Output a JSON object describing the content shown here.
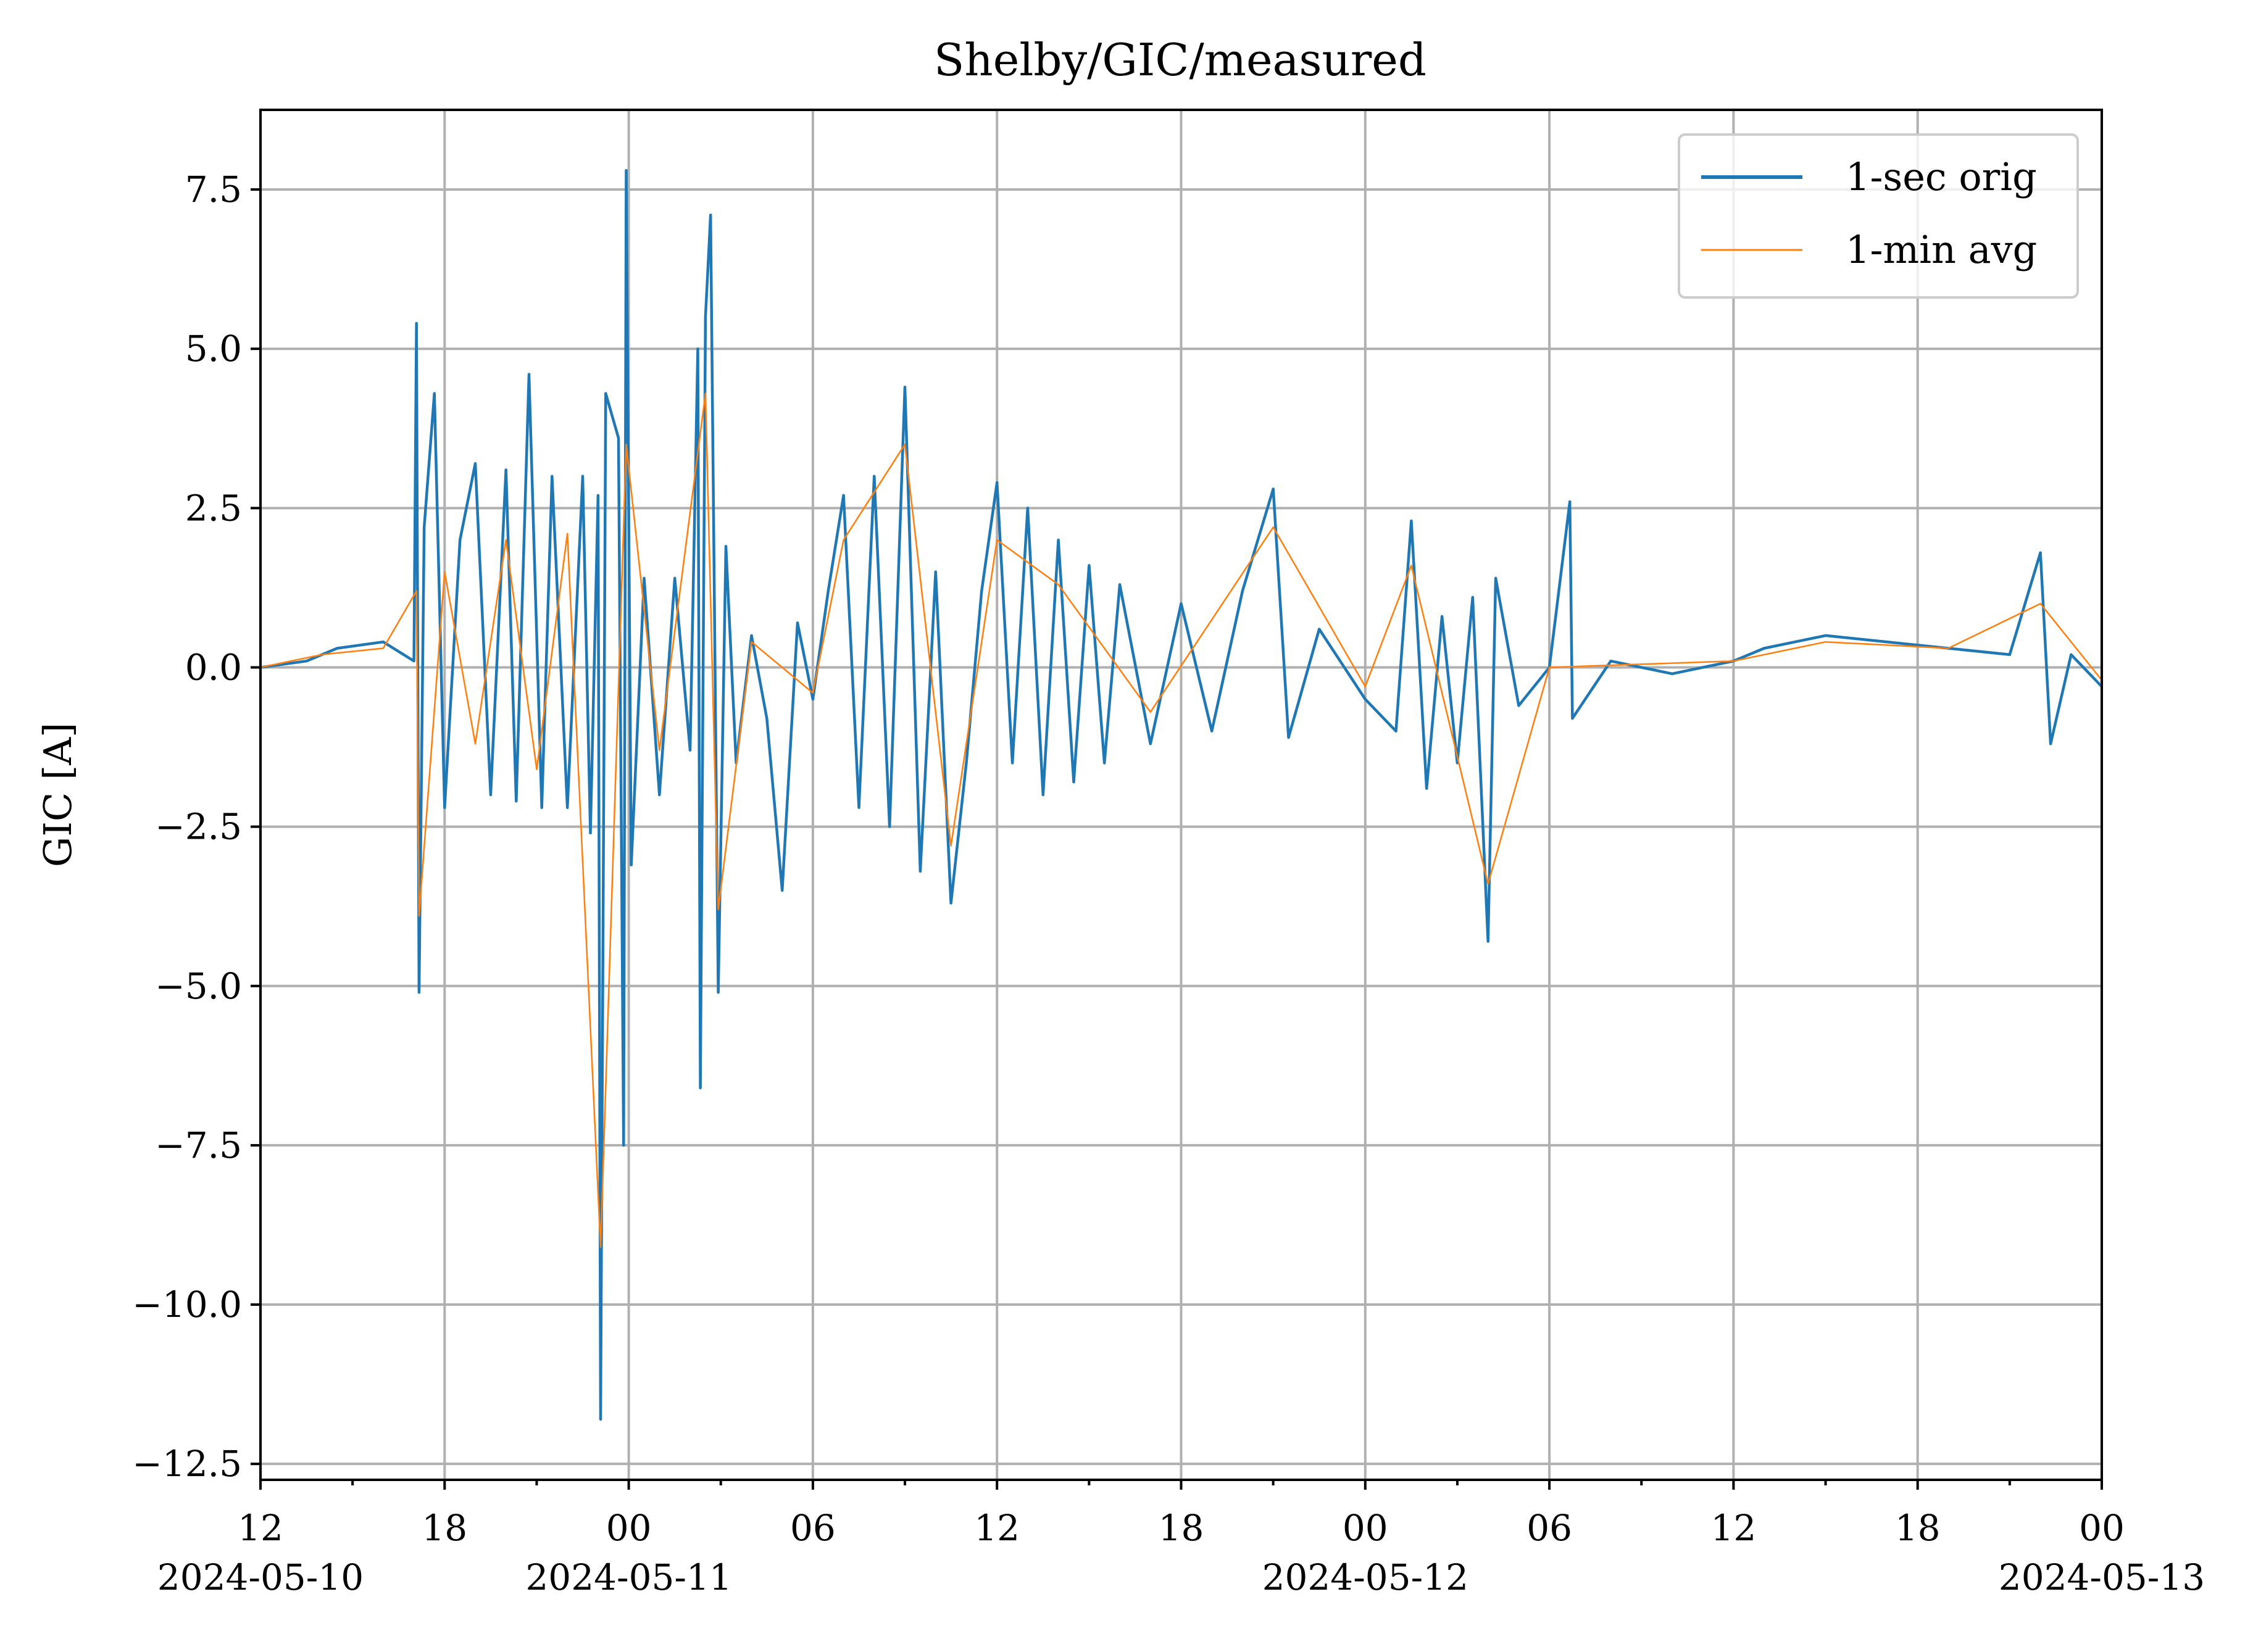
{
  "chart_data": {
    "type": "line",
    "title": "Shelby/GIC/measured",
    "xlabel": "",
    "ylabel": "GIC [A]",
    "xlim": [
      "2024-05-10 12:00",
      "2024-05-13 00:00"
    ],
    "ylim": [
      -12.75,
      8.75
    ],
    "grid": true,
    "legend_position": "upper right",
    "x_ticks": [
      {
        "time": "2024-05-10 12:00",
        "label": "12",
        "date_label": "2024-05-10"
      },
      {
        "time": "2024-05-10 18:00",
        "label": "18",
        "date_label": ""
      },
      {
        "time": "2024-05-11 00:00",
        "label": "00",
        "date_label": "2024-05-11"
      },
      {
        "time": "2024-05-11 06:00",
        "label": "06",
        "date_label": ""
      },
      {
        "time": "2024-05-11 12:00",
        "label": "12",
        "date_label": ""
      },
      {
        "time": "2024-05-11 18:00",
        "label": "18",
        "date_label": ""
      },
      {
        "time": "2024-05-12 00:00",
        "label": "00",
        "date_label": "2024-05-12"
      },
      {
        "time": "2024-05-12 06:00",
        "label": "06",
        "date_label": ""
      },
      {
        "time": "2024-05-12 12:00",
        "label": "12",
        "date_label": ""
      },
      {
        "time": "2024-05-12 18:00",
        "label": "18",
        "date_label": ""
      },
      {
        "time": "2024-05-13 00:00",
        "label": "00",
        "date_label": "2024-05-13"
      }
    ],
    "y_ticks": [
      {
        "value": 7.5,
        "label": "7.5"
      },
      {
        "value": 5.0,
        "label": "5.0"
      },
      {
        "value": 2.5,
        "label": "2.5"
      },
      {
        "value": 0.0,
        "label": "0.0"
      },
      {
        "value": -2.5,
        "label": "−2.5"
      },
      {
        "value": -5.0,
        "label": "−5.0"
      },
      {
        "value": -7.5,
        "label": "−7.5"
      },
      {
        "value": -10.0,
        "label": "−10.0"
      },
      {
        "value": -12.5,
        "label": "−12.5"
      }
    ],
    "series": [
      {
        "name": "1-sec orig",
        "color": "#1f77b4",
        "points": [
          [
            "2024-05-10 12:00",
            0.0
          ],
          [
            "2024-05-10 13:30",
            0.1
          ],
          [
            "2024-05-10 14:30",
            0.3
          ],
          [
            "2024-05-10 16:00",
            0.4
          ],
          [
            "2024-05-10 17:00",
            0.1
          ],
          [
            "2024-05-10 17:05",
            5.4
          ],
          [
            "2024-05-10 17:10",
            -5.1
          ],
          [
            "2024-05-10 17:20",
            2.2
          ],
          [
            "2024-05-10 17:40",
            4.3
          ],
          [
            "2024-05-10 18:00",
            -2.2
          ],
          [
            "2024-05-10 18:30",
            2.0
          ],
          [
            "2024-05-10 19:00",
            3.2
          ],
          [
            "2024-05-10 19:30",
            -2.0
          ],
          [
            "2024-05-10 20:00",
            3.1
          ],
          [
            "2024-05-10 20:20",
            -2.1
          ],
          [
            "2024-05-10 20:45",
            4.6
          ],
          [
            "2024-05-10 21:10",
            -2.2
          ],
          [
            "2024-05-10 21:30",
            3.0
          ],
          [
            "2024-05-10 22:00",
            -2.2
          ],
          [
            "2024-05-10 22:30",
            3.0
          ],
          [
            "2024-05-10 22:45",
            -2.6
          ],
          [
            "2024-05-10 23:00",
            2.7
          ],
          [
            "2024-05-10 23:05",
            -11.8
          ],
          [
            "2024-05-10 23:15",
            4.3
          ],
          [
            "2024-05-10 23:40",
            3.6
          ],
          [
            "2024-05-10 23:50",
            -7.5
          ],
          [
            "2024-05-10 23:55",
            7.8
          ],
          [
            "2024-05-11 00:05",
            -3.1
          ],
          [
            "2024-05-11 00:30",
            1.4
          ],
          [
            "2024-05-11 01:00",
            -2.0
          ],
          [
            "2024-05-11 01:30",
            1.4
          ],
          [
            "2024-05-11 02:00",
            -1.3
          ],
          [
            "2024-05-11 02:15",
            5.0
          ],
          [
            "2024-05-11 02:20",
            -6.6
          ],
          [
            "2024-05-11 02:30",
            5.5
          ],
          [
            "2024-05-11 02:40",
            7.1
          ],
          [
            "2024-05-11 02:55",
            -5.1
          ],
          [
            "2024-05-11 03:10",
            1.9
          ],
          [
            "2024-05-11 03:30",
            -1.5
          ],
          [
            "2024-05-11 04:00",
            0.5
          ],
          [
            "2024-05-11 04:30",
            -0.8
          ],
          [
            "2024-05-11 05:00",
            -3.5
          ],
          [
            "2024-05-11 05:30",
            0.7
          ],
          [
            "2024-05-11 06:00",
            -0.5
          ],
          [
            "2024-05-11 06:30",
            1.2
          ],
          [
            "2024-05-11 07:00",
            2.7
          ],
          [
            "2024-05-11 07:30",
            -2.2
          ],
          [
            "2024-05-11 08:00",
            3.0
          ],
          [
            "2024-05-11 08:30",
            -2.5
          ],
          [
            "2024-05-11 09:00",
            4.4
          ],
          [
            "2024-05-11 09:30",
            -3.2
          ],
          [
            "2024-05-11 10:00",
            1.5
          ],
          [
            "2024-05-11 10:30",
            -3.7
          ],
          [
            "2024-05-11 11:00",
            -1.5
          ],
          [
            "2024-05-11 11:30",
            1.2
          ],
          [
            "2024-05-11 12:00",
            2.9
          ],
          [
            "2024-05-11 12:30",
            -1.5
          ],
          [
            "2024-05-11 13:00",
            2.5
          ],
          [
            "2024-05-11 13:30",
            -2.0
          ],
          [
            "2024-05-11 14:00",
            2.0
          ],
          [
            "2024-05-11 14:30",
            -1.8
          ],
          [
            "2024-05-11 15:00",
            1.6
          ],
          [
            "2024-05-11 15:30",
            -1.5
          ],
          [
            "2024-05-11 16:00",
            1.3
          ],
          [
            "2024-05-11 17:00",
            -1.2
          ],
          [
            "2024-05-11 18:00",
            1.0
          ],
          [
            "2024-05-11 19:00",
            -1.0
          ],
          [
            "2024-05-11 20:00",
            1.2
          ],
          [
            "2024-05-11 21:00",
            2.8
          ],
          [
            "2024-05-11 21:30",
            -1.1
          ],
          [
            "2024-05-11 22:30",
            0.6
          ],
          [
            "2024-05-12 00:00",
            -0.5
          ],
          [
            "2024-05-12 01:00",
            -1.0
          ],
          [
            "2024-05-12 01:30",
            2.3
          ],
          [
            "2024-05-12 02:00",
            -1.9
          ],
          [
            "2024-05-12 02:30",
            0.8
          ],
          [
            "2024-05-12 03:00",
            -1.5
          ],
          [
            "2024-05-12 03:30",
            1.1
          ],
          [
            "2024-05-12 04:00",
            -4.3
          ],
          [
            "2024-05-12 04:15",
            1.4
          ],
          [
            "2024-05-12 05:00",
            -0.6
          ],
          [
            "2024-05-12 06:00",
            0.0
          ],
          [
            "2024-05-12 06:40",
            2.6
          ],
          [
            "2024-05-12 06:45",
            -0.8
          ],
          [
            "2024-05-12 08:00",
            0.1
          ],
          [
            "2024-05-12 10:00",
            -0.1
          ],
          [
            "2024-05-12 12:00",
            0.1
          ],
          [
            "2024-05-12 13:00",
            0.3
          ],
          [
            "2024-05-12 15:00",
            0.5
          ],
          [
            "2024-05-12 17:00",
            0.4
          ],
          [
            "2024-05-12 19:00",
            0.3
          ],
          [
            "2024-05-12 21:00",
            0.2
          ],
          [
            "2024-05-12 22:00",
            1.8
          ],
          [
            "2024-05-12 22:20",
            -1.2
          ],
          [
            "2024-05-12 23:00",
            0.2
          ],
          [
            "2024-05-13 00:00",
            -0.3
          ]
        ]
      },
      {
        "name": "1-min avg",
        "color": "#ff7f0e",
        "points": [
          [
            "2024-05-10 12:00",
            0.0
          ],
          [
            "2024-05-10 14:00",
            0.2
          ],
          [
            "2024-05-10 16:00",
            0.3
          ],
          [
            "2024-05-10 17:05",
            1.2
          ],
          [
            "2024-05-10 17:10",
            -3.9
          ],
          [
            "2024-05-10 18:00",
            1.5
          ],
          [
            "2024-05-10 19:00",
            -1.2
          ],
          [
            "2024-05-10 20:00",
            2.0
          ],
          [
            "2024-05-10 21:00",
            -1.6
          ],
          [
            "2024-05-10 22:00",
            2.1
          ],
          [
            "2024-05-10 23:05",
            -9.1
          ],
          [
            "2024-05-10 23:55",
            3.5
          ],
          [
            "2024-05-11 01:00",
            -1.3
          ],
          [
            "2024-05-11 02:30",
            4.3
          ],
          [
            "2024-05-11 02:55",
            -3.8
          ],
          [
            "2024-05-11 04:00",
            0.4
          ],
          [
            "2024-05-11 06:00",
            -0.4
          ],
          [
            "2024-05-11 07:00",
            2.0
          ],
          [
            "2024-05-11 09:00",
            3.5
          ],
          [
            "2024-05-11 10:30",
            -2.8
          ],
          [
            "2024-05-11 12:00",
            2.0
          ],
          [
            "2024-05-11 14:00",
            1.3
          ],
          [
            "2024-05-11 17:00",
            -0.7
          ],
          [
            "2024-05-11 21:00",
            2.2
          ],
          [
            "2024-05-12 00:00",
            -0.3
          ],
          [
            "2024-05-12 01:30",
            1.6
          ],
          [
            "2024-05-12 04:00",
            -3.4
          ],
          [
            "2024-05-12 06:00",
            0.0
          ],
          [
            "2024-05-12 12:00",
            0.1
          ],
          [
            "2024-05-12 15:00",
            0.4
          ],
          [
            "2024-05-12 19:00",
            0.3
          ],
          [
            "2024-05-12 22:00",
            1.0
          ],
          [
            "2024-05-13 00:00",
            -0.2
          ]
        ]
      }
    ]
  }
}
